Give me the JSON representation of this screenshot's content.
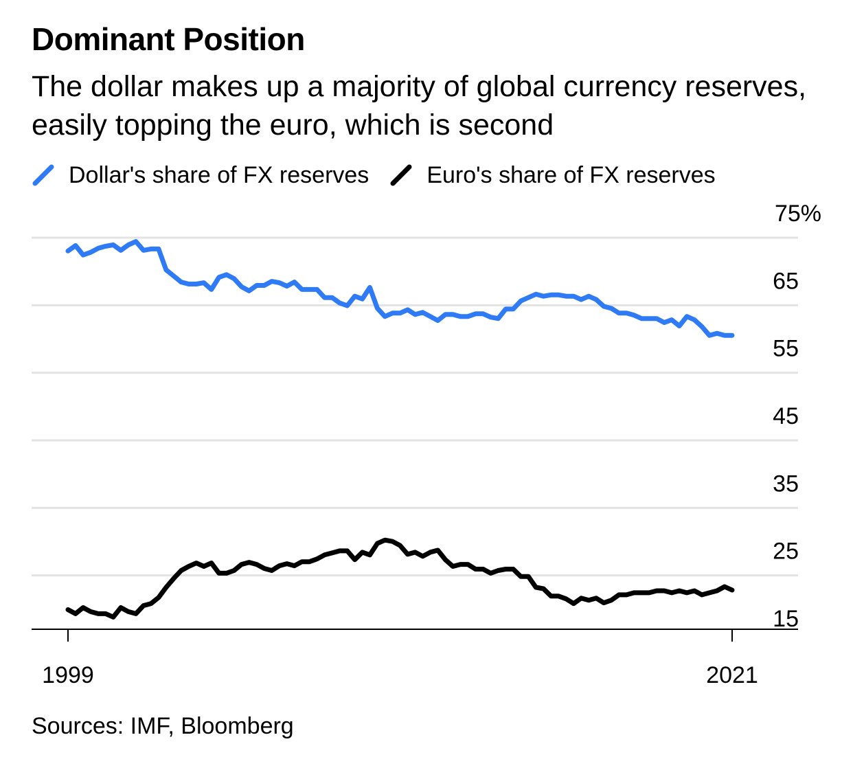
{
  "header": {
    "title": "Dominant Position",
    "subtitle": "The dollar makes up a majority of global currency reserves, easily topping the euro, which is second"
  },
  "legend": {
    "items": [
      {
        "label": "Dollar's share of FX reserves",
        "color": "#2f7bf5"
      },
      {
        "label": "Euro's share of FX reserves",
        "color": "#000000"
      }
    ]
  },
  "footer": {
    "source": "Sources: IMF, Bloomberg"
  },
  "chart_data": {
    "type": "line",
    "title": "Dominant Position",
    "subtitle": "The dollar makes up a majority of global currency reserves, easily topping the euro, which is second",
    "xlabel": "",
    "ylabel": "",
    "xlim": [
      1999,
      2021
    ],
    "ylim": [
      15,
      75
    ],
    "x_tick_labels": [
      "1999",
      "2021"
    ],
    "y_tick_labels": [
      "75%",
      "65",
      "55",
      "45",
      "35",
      "25",
      "15"
    ],
    "y_tick_values": [
      75,
      65,
      55,
      45,
      35,
      25,
      15
    ],
    "grid": true,
    "legend_position": "top-left",
    "series": [
      {
        "name": "Dollar's share of FX reserves",
        "color": "#2f7bf5",
        "x": [
          1999.0,
          1999.25,
          1999.5,
          1999.75,
          2000.0,
          2000.25,
          2000.5,
          2000.75,
          2001.0,
          2001.25,
          2001.5,
          2001.75,
          2002.0,
          2002.25,
          2002.5,
          2002.75,
          2003.0,
          2003.25,
          2003.5,
          2003.75,
          2004.0,
          2004.25,
          2004.5,
          2004.75,
          2005.0,
          2005.25,
          2005.5,
          2005.75,
          2006.0,
          2006.25,
          2006.5,
          2006.75,
          2007.0,
          2007.25,
          2007.5,
          2007.75,
          2008.0,
          2008.25,
          2008.5,
          2008.75,
          2009.0,
          2009.25,
          2009.5,
          2009.75,
          2010.0,
          2010.25,
          2010.5,
          2010.75,
          2011.0,
          2011.25,
          2011.5,
          2011.75,
          2012.0,
          2012.25,
          2012.5,
          2012.75,
          2013.0,
          2013.25,
          2013.5,
          2013.75,
          2014.0,
          2014.25,
          2014.5,
          2014.75,
          2015.0,
          2015.25,
          2015.5,
          2015.75,
          2016.0,
          2016.25,
          2016.5,
          2016.75,
          2017.0,
          2017.25,
          2017.5,
          2017.75,
          2018.0,
          2018.25,
          2018.5,
          2018.75,
          2019.0,
          2019.25,
          2019.5,
          2019.75,
          2020.0,
          2020.25,
          2020.5,
          2020.75,
          2021.0
        ],
        "values": [
          71.0,
          71.8,
          70.4,
          70.8,
          71.4,
          71.7,
          71.9,
          71.1,
          71.9,
          72.4,
          71.1,
          71.3,
          71.3,
          68.2,
          67.3,
          66.4,
          66.1,
          66.1,
          66.3,
          65.3,
          67.1,
          67.5,
          66.9,
          65.7,
          65.1,
          65.9,
          65.9,
          66.5,
          66.3,
          65.8,
          66.4,
          65.3,
          65.3,
          65.3,
          64.1,
          64.1,
          63.3,
          62.9,
          64.3,
          63.9,
          65.6,
          62.5,
          61.3,
          61.8,
          61.8,
          62.3,
          61.6,
          61.9,
          61.3,
          60.7,
          61.6,
          61.6,
          61.3,
          61.3,
          61.7,
          61.7,
          61.2,
          61.0,
          62.4,
          62.4,
          63.6,
          64.1,
          64.6,
          64.3,
          64.5,
          64.5,
          64.3,
          64.3,
          63.8,
          64.3,
          63.8,
          62.8,
          62.5,
          61.8,
          61.8,
          61.5,
          61.0,
          61.0,
          61.0,
          60.4,
          60.8,
          59.9,
          61.3,
          60.8,
          59.8,
          58.5,
          58.8,
          58.5,
          58.5
        ]
      },
      {
        "name": "Euro's share of FX reserves",
        "color": "#000000",
        "x": [
          1999.0,
          1999.25,
          1999.5,
          1999.75,
          2000.0,
          2000.25,
          2000.5,
          2000.75,
          2001.0,
          2001.25,
          2001.5,
          2001.75,
          2002.0,
          2002.25,
          2002.5,
          2002.75,
          2003.0,
          2003.25,
          2003.5,
          2003.75,
          2004.0,
          2004.25,
          2004.5,
          2004.75,
          2005.0,
          2005.25,
          2005.5,
          2005.75,
          2006.0,
          2006.25,
          2006.5,
          2006.75,
          2007.0,
          2007.25,
          2007.5,
          2007.75,
          2008.0,
          2008.25,
          2008.5,
          2008.75,
          2009.0,
          2009.25,
          2009.5,
          2009.75,
          2010.0,
          2010.25,
          2010.5,
          2010.75,
          2011.0,
          2011.25,
          2011.5,
          2011.75,
          2012.0,
          2012.25,
          2012.5,
          2012.75,
          2013.0,
          2013.25,
          2013.5,
          2013.75,
          2014.0,
          2014.25,
          2014.5,
          2014.75,
          2015.0,
          2015.25,
          2015.5,
          2015.75,
          2016.0,
          2016.25,
          2016.5,
          2016.75,
          2017.0,
          2017.25,
          2017.5,
          2017.75,
          2018.0,
          2018.25,
          2018.5,
          2018.75,
          2019.0,
          2019.25,
          2019.5,
          2019.75,
          2020.0,
          2020.25,
          2020.5,
          2020.75,
          2021.0
        ],
        "values": [
          17.9,
          17.3,
          18.2,
          17.6,
          17.3,
          17.3,
          16.8,
          18.2,
          17.6,
          17.3,
          18.5,
          18.8,
          19.7,
          21.2,
          22.5,
          23.7,
          24.3,
          24.8,
          24.3,
          24.8,
          23.3,
          23.3,
          23.7,
          24.6,
          24.9,
          24.6,
          24.0,
          23.7,
          24.4,
          24.7,
          24.4,
          25.0,
          25.0,
          25.4,
          26.0,
          26.3,
          26.6,
          26.6,
          25.3,
          26.4,
          26.0,
          27.7,
          28.2,
          28.0,
          27.4,
          26.1,
          26.4,
          25.8,
          26.4,
          26.7,
          25.3,
          24.3,
          24.6,
          24.6,
          23.9,
          23.9,
          23.3,
          23.7,
          23.9,
          23.9,
          22.8,
          22.8,
          21.2,
          21.0,
          19.9,
          19.9,
          19.5,
          18.8,
          19.6,
          19.3,
          19.6,
          18.9,
          19.3,
          20.1,
          20.1,
          20.4,
          20.4,
          20.4,
          20.7,
          20.7,
          20.4,
          20.7,
          20.4,
          20.7,
          20.1,
          20.4,
          20.7,
          21.3,
          20.8
        ]
      }
    ]
  }
}
